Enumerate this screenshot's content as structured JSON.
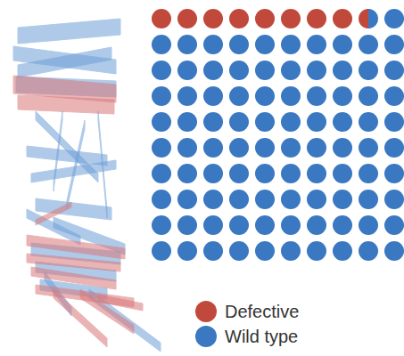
{
  "chart_data": {
    "type": "waffle",
    "series": [
      {
        "name": "Defective",
        "color": "#c0493c",
        "value": 8.5
      },
      {
        "name": "Wild type",
        "color": "#3a78c2",
        "value": 91.5
      }
    ],
    "tick_labels": false,
    "legend": "bottom"
  }
}
